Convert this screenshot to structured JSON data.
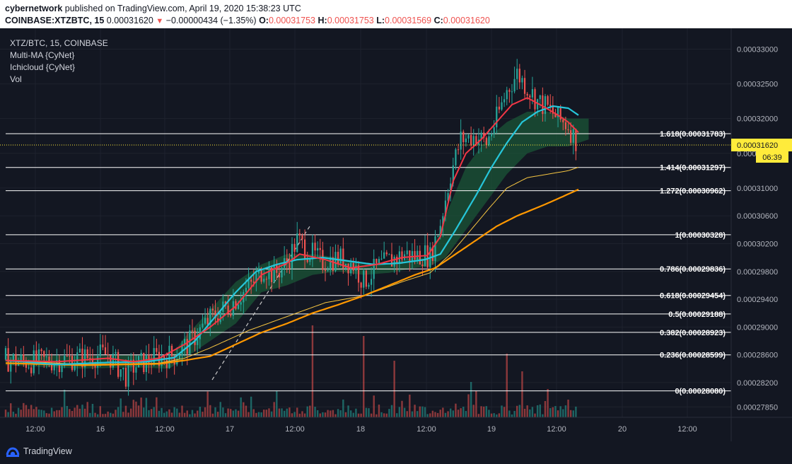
{
  "header": {
    "author": "cybernetwork",
    "published_text": "published on TradingView.com, April 19, 2020 15:38:23 UTC",
    "symbol": "COINBASE:XTZBTC, 15",
    "last": "0.00031620",
    "change": "−0.00000434 (−1.35%)",
    "open_label": "O:",
    "open": "0.00031753",
    "high_label": "H:",
    "high": "0.00031753",
    "low_label": "L:",
    "low": "0.00031569",
    "close_label": "C:",
    "close": "0.00031620"
  },
  "legend": {
    "title": "XTZ/BTC, 15, COINBASE",
    "ma": "Multi-MA {CyNet}",
    "ichi": "Ichicloud {CyNet}",
    "vol": "Vol"
  },
  "chart_data": {
    "type": "candlestick",
    "symbol": "XTZ/BTC",
    "interval": "15",
    "exchange": "COINBASE",
    "ylim": [
      0.000277,
      0.000333
    ],
    "y_ticks": [
      "0.00033000",
      "0.00032500",
      "0.00032000",
      "0.00031500",
      "0.00031000",
      "0.00030600",
      "0.00030200",
      "0.00029800",
      "0.00029400",
      "0.00029000",
      "0.00028600",
      "0.00028200",
      "0.00027850"
    ],
    "x_ticks": [
      "12:00",
      "16",
      "12:00",
      "17",
      "12:00",
      "18",
      "12:00",
      "19",
      "12:00",
      "20",
      "12:00"
    ],
    "fib_levels": [
      {
        "label": "1.618(0.00031783)",
        "value": 0.00031783
      },
      {
        "label": "1.414(0.00031297)",
        "value": 0.00031297
      },
      {
        "label": "1.272(0.00030962)",
        "value": 0.00030962
      },
      {
        "label": "1(0.00030328)",
        "value": 0.00030328
      },
      {
        "label": "0.786(0.00029836)",
        "value": 0.00029836
      },
      {
        "label": "0.618(0.00029454)",
        "value": 0.00029454
      },
      {
        "label": "0.5(0.00029188)",
        "value": 0.00029188
      },
      {
        "label": "0.382(0.00028923)",
        "value": 0.00028923
      },
      {
        "label": "0.236(0.00028599)",
        "value": 0.00028599
      },
      {
        "label": "0(0.00028080)",
        "value": 0.0002808
      }
    ],
    "last_price_label": "0.00031620",
    "last_price": 0.0003162,
    "countdown": "06:39",
    "close_path": [
      [
        0,
        0.0002853
      ],
      [
        10,
        0.000285
      ],
      [
        20,
        0.0002852
      ],
      [
        30,
        0.0002856
      ],
      [
        40,
        0.0002861
      ],
      [
        47,
        0.000283
      ],
      [
        50,
        0.0002843
      ],
      [
        58,
        0.0002855
      ],
      [
        66,
        0.000286
      ],
      [
        72,
        0.0002878
      ],
      [
        80,
        0.0002912
      ],
      [
        88,
        0.0002933
      ],
      [
        96,
        0.000296
      ],
      [
        101,
        0.0002985
      ],
      [
        105,
        0.0002975
      ],
      [
        110,
        0.0002993
      ],
      [
        114,
        0.0003025
      ],
      [
        118,
        0.000301
      ],
      [
        124,
        0.0002993
      ],
      [
        130,
        0.0003
      ],
      [
        136,
        0.000299
      ],
      [
        140,
        0.0002965
      ],
      [
        145,
        0.0002985
      ],
      [
        150,
        0.0002995
      ],
      [
        156,
        0.0003005
      ],
      [
        160,
        0.0003002
      ],
      [
        164,
        0.0003005
      ],
      [
        166,
        0.0003
      ],
      [
        170,
        0.000305
      ],
      [
        174,
        0.000312
      ],
      [
        178,
        0.000317
      ],
      [
        184,
        0.0003175
      ],
      [
        188,
        0.0003165
      ],
      [
        192,
        0.00032
      ],
      [
        196,
        0.000324
      ],
      [
        200,
        0.0003265
      ],
      [
        204,
        0.0003245
      ],
      [
        208,
        0.0003225
      ],
      [
        212,
        0.0003215
      ],
      [
        216,
        0.00032
      ],
      [
        220,
        0.000319
      ],
      [
        222,
        0.0003175
      ],
      [
        224,
        0.0003162
      ]
    ],
    "fast_ma": [
      [
        0,
        0.0002852
      ],
      [
        20,
        0.000285
      ],
      [
        40,
        0.0002855
      ],
      [
        50,
        0.000285
      ],
      [
        60,
        0.0002855
      ],
      [
        70,
        0.0002875
      ],
      [
        80,
        0.00029
      ],
      [
        90,
        0.000293
      ],
      [
        100,
        0.0002975
      ],
      [
        110,
        0.0002992
      ],
      [
        115,
        0.0003005
      ],
      [
        125,
        0.0002997
      ],
      [
        135,
        0.0002985
      ],
      [
        145,
        0.000299
      ],
      [
        155,
        0.0003
      ],
      [
        165,
        0.0003003
      ],
      [
        170,
        0.000303
      ],
      [
        175,
        0.000311
      ],
      [
        180,
        0.000315
      ],
      [
        186,
        0.000317
      ],
      [
        192,
        0.0003195
      ],
      [
        198,
        0.000322
      ],
      [
        204,
        0.000323
      ],
      [
        210,
        0.0003218
      ],
      [
        216,
        0.0003205
      ],
      [
        220,
        0.0003195
      ],
      [
        224,
        0.000318
      ]
    ],
    "slow_ma": [
      [
        0,
        0.0002852
      ],
      [
        20,
        0.0002846
      ],
      [
        40,
        0.0002849
      ],
      [
        55,
        0.000285
      ],
      [
        66,
        0.0002856
      ],
      [
        74,
        0.000288
      ],
      [
        82,
        0.0002915
      ],
      [
        90,
        0.000295
      ],
      [
        98,
        0.000298
      ],
      [
        106,
        0.000299
      ],
      [
        114,
        0.0002997
      ],
      [
        124,
        0.0003
      ],
      [
        134,
        0.0002995
      ],
      [
        144,
        0.000299
      ],
      [
        154,
        0.0002992
      ],
      [
        164,
        0.0002997
      ],
      [
        170,
        0.0003005
      ],
      [
        176,
        0.000304
      ],
      [
        184,
        0.000309
      ],
      [
        190,
        0.000313
      ],
      [
        196,
        0.0003165
      ],
      [
        202,
        0.0003195
      ],
      [
        208,
        0.000321
      ],
      [
        214,
        0.0003218
      ],
      [
        220,
        0.0003215
      ],
      [
        224,
        0.0003205
      ]
    ],
    "ma_thin": [
      [
        0,
        0.0002852
      ],
      [
        30,
        0.0002846
      ],
      [
        60,
        0.0002848
      ],
      [
        70,
        0.0002855
      ],
      [
        80,
        0.000287
      ],
      [
        95,
        0.0002895
      ],
      [
        110,
        0.0002915
      ],
      [
        125,
        0.0002935
      ],
      [
        140,
        0.0002945
      ],
      [
        155,
        0.0002965
      ],
      [
        166,
        0.0002978
      ],
      [
        174,
        0.0003005
      ],
      [
        182,
        0.000304
      ],
      [
        190,
        0.0003075
      ],
      [
        196,
        0.00031
      ],
      [
        204,
        0.0003115
      ],
      [
        212,
        0.000312
      ],
      [
        220,
        0.0003125
      ],
      [
        224,
        0.000313
      ]
    ],
    "ma_thick": [
      [
        0,
        0.0002848
      ],
      [
        30,
        0.0002845
      ],
      [
        60,
        0.0002847
      ],
      [
        70,
        0.0002852
      ],
      [
        80,
        0.0002858
      ],
      [
        90,
        0.0002875
      ],
      [
        100,
        0.0002892
      ],
      [
        110,
        0.0002905
      ],
      [
        120,
        0.000292
      ],
      [
        130,
        0.0002932
      ],
      [
        140,
        0.0002945
      ],
      [
        150,
        0.000296
      ],
      [
        160,
        0.0002975
      ],
      [
        168,
        0.0002985
      ],
      [
        176,
        0.0003005
      ],
      [
        184,
        0.0003025
      ],
      [
        192,
        0.0003045
      ],
      [
        200,
        0.000306
      ],
      [
        210,
        0.0003075
      ],
      [
        218,
        0.0003088
      ],
      [
        224,
        0.0003098
      ]
    ],
    "cloud_upper": [
      [
        0,
        0.000286
      ],
      [
        30,
        0.0002858
      ],
      [
        50,
        0.000286
      ],
      [
        64,
        0.0002855
      ],
      [
        70,
        0.0002885
      ],
      [
        80,
        0.0002925
      ],
      [
        90,
        0.0002965
      ],
      [
        100,
        0.000299
      ],
      [
        110,
        0.0003005
      ],
      [
        120,
        0.0003005
      ],
      [
        130,
        0.0003
      ],
      [
        140,
        0.000299
      ],
      [
        150,
        0.0002992
      ],
      [
        160,
        0.0003
      ],
      [
        166,
        0.0003
      ],
      [
        172,
        0.000306
      ],
      [
        180,
        0.000313
      ],
      [
        188,
        0.000317
      ],
      [
        196,
        0.0003195
      ],
      [
        204,
        0.000321
      ],
      [
        212,
        0.000321
      ],
      [
        220,
        0.00032
      ],
      [
        228,
        0.00032
      ]
    ],
    "cloud_lower": [
      [
        0,
        0.0002845
      ],
      [
        30,
        0.000284
      ],
      [
        50,
        0.0002842
      ],
      [
        64,
        0.000284
      ],
      [
        70,
        0.0002855
      ],
      [
        80,
        0.000288
      ],
      [
        90,
        0.0002905
      ],
      [
        100,
        0.000295
      ],
      [
        110,
        0.000296
      ],
      [
        120,
        0.0002975
      ],
      [
        130,
        0.000298
      ],
      [
        140,
        0.0002975
      ],
      [
        150,
        0.0002978
      ],
      [
        160,
        0.0002985
      ],
      [
        166,
        0.0002988
      ],
      [
        172,
        0.0003
      ],
      [
        180,
        0.000304
      ],
      [
        188,
        0.000308
      ],
      [
        196,
        0.000312
      ],
      [
        204,
        0.000315
      ],
      [
        212,
        0.000316
      ],
      [
        220,
        0.000316
      ],
      [
        228,
        0.000317
      ]
    ]
  },
  "footer": {
    "brand": "TradingView"
  },
  "colors": {
    "background": "#131722",
    "up": "#26a69a",
    "down": "#ef5350",
    "fast_ma": "#f23645",
    "slow_ma": "#26c6da",
    "ma_orange": "#ff9800",
    "ma_yellow": "#f5c542",
    "cloud": "#1b5e3a",
    "last_price": "#ffeb3b",
    "fib": "#ffffff"
  }
}
